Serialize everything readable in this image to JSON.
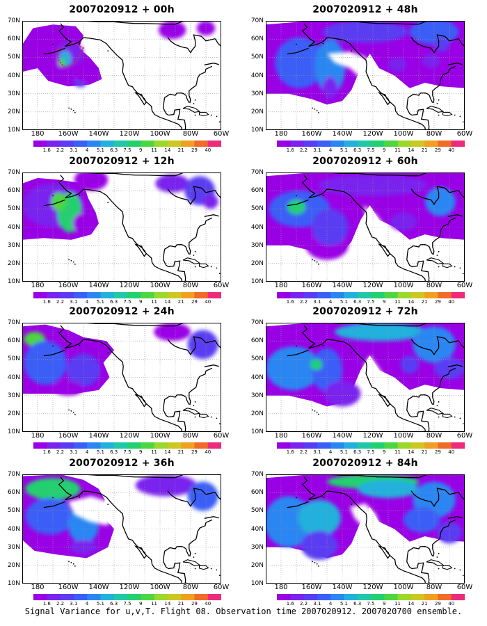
{
  "panels": [
    {
      "title": "2007020912 + 00h"
    },
    {
      "title": "2007020912 + 48h"
    },
    {
      "title": "2007020912 + 12h"
    },
    {
      "title": "2007020912 + 60h"
    },
    {
      "title": "2007020912 + 24h"
    },
    {
      "title": "2007020912 + 72h"
    },
    {
      "title": "2007020912 + 36h"
    },
    {
      "title": "2007020912 + 84h"
    }
  ],
  "lat_labels": [
    "70N",
    "60N",
    "50N",
    "40N",
    "30N",
    "20N",
    "10N"
  ],
  "lon_labels": [
    "180",
    "160W",
    "140W",
    "120W",
    "100W",
    "80W",
    "60W"
  ],
  "colorbar": {
    "levels": [
      "1.6",
      "2.2",
      "3.1",
      "4",
      "5.1",
      "6.3",
      "7.5",
      "9",
      "11",
      "14",
      "21",
      "29",
      "40"
    ],
    "colors": [
      "#9a00e6",
      "#7a22ee",
      "#5a3cf2",
      "#3a5ef6",
      "#2a86f2",
      "#22b0dc",
      "#20c8a8",
      "#22d070",
      "#4cd640",
      "#9ad82a",
      "#ccc820",
      "#f0a020",
      "#f06a28",
      "#ee2a7a"
    ]
  },
  "footer": "Signal Variance for u,v,T. Flight 08. Observation time 2007020912. 2007020700 ensemble."
}
